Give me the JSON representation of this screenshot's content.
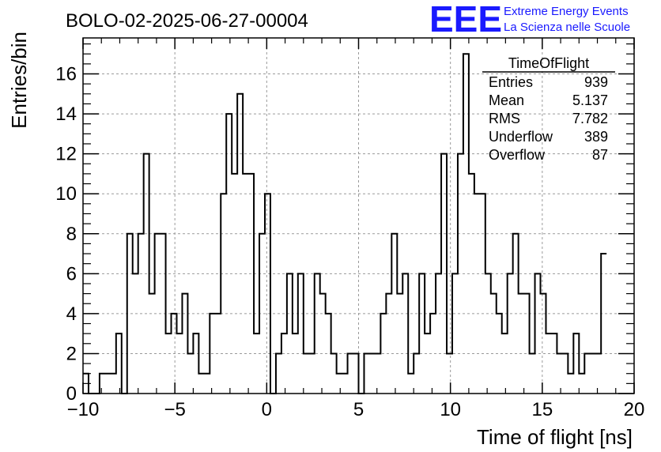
{
  "title": "BOLO-02-2025-06-27-00004",
  "logo": {
    "mark": "EEE",
    "line1": "Extreme Energy Events",
    "line2": "La Scienza nelle Scuole",
    "color": "#1a1aff"
  },
  "stats": {
    "name": "TimeOfFlight",
    "rows": [
      {
        "label": "Entries",
        "value": "939"
      },
      {
        "label": "Mean",
        "value": "5.137"
      },
      {
        "label": "RMS",
        "value": "7.782"
      },
      {
        "label": "Underflow",
        "value": "389"
      },
      {
        "label": "Overflow",
        "value": "87"
      }
    ]
  },
  "chart_data": {
    "type": "histogram",
    "title": "BOLO-02-2025-06-27-00004",
    "xlabel": "Time of flight [ns]",
    "ylabel": "Entries/bin",
    "xlim": [
      -10,
      20
    ],
    "ylim": [
      0,
      17.8
    ],
    "bin_width": 0.3,
    "x_ticks": [
      -10,
      -5,
      0,
      5,
      10,
      15,
      20
    ],
    "x_tick_labels": [
      "−10",
      "−5",
      "0",
      "5",
      "10",
      "15",
      "20"
    ],
    "y_ticks": [
      0,
      2,
      4,
      6,
      8,
      10,
      12,
      14,
      16
    ],
    "grid": true,
    "bin_edges_start": -10,
    "values": [
      1,
      0,
      0,
      1,
      1,
      1,
      3,
      0,
      8,
      6,
      8,
      12,
      5,
      8,
      8,
      3,
      4,
      3,
      5,
      2,
      3,
      1,
      1,
      4,
      4,
      10,
      14,
      11,
      15,
      11,
      11,
      3,
      8,
      10,
      0,
      2,
      3,
      6,
      3,
      6,
      2,
      2,
      6,
      5,
      4,
      2,
      1,
      1,
      2,
      2,
      0,
      2,
      2,
      2,
      4,
      5,
      8,
      5,
      6,
      1,
      2,
      6,
      3,
      4,
      6,
      12,
      2,
      6,
      12,
      17,
      11,
      10,
      10,
      6,
      5,
      4,
      3,
      6,
      8,
      5,
      5,
      2,
      6,
      5,
      3,
      3,
      2,
      2,
      1,
      3,
      1,
      2,
      2,
      2,
      7
    ]
  }
}
